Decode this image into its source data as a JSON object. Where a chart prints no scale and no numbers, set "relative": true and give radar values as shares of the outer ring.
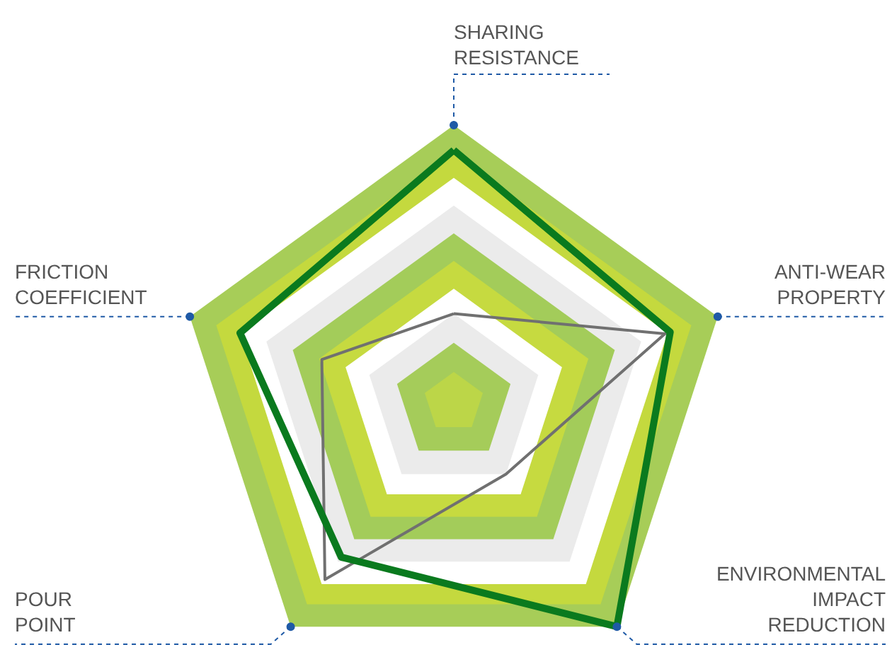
{
  "chart_data": {
    "type": "radar",
    "relative": true,
    "grid": true,
    "categories": [
      "SHARING\nRESISTANCE",
      "ANTI-WEAR\nPROPERTY",
      "ENVIRONMENTAL\nIMPACT\nREDUCTION",
      "POUR\nPOINT",
      "FRICTION\nCOEFFICIENT"
    ],
    "series": [
      {
        "color": "#707070",
        "values": [
          0.32,
          0.8,
          0.32,
          0.79,
          0.5
        ]
      },
      {
        "color": "#0a7a1e",
        "values": [
          0.91,
          0.82,
          1.0,
          0.69,
          0.81
        ]
      }
    ]
  }
}
